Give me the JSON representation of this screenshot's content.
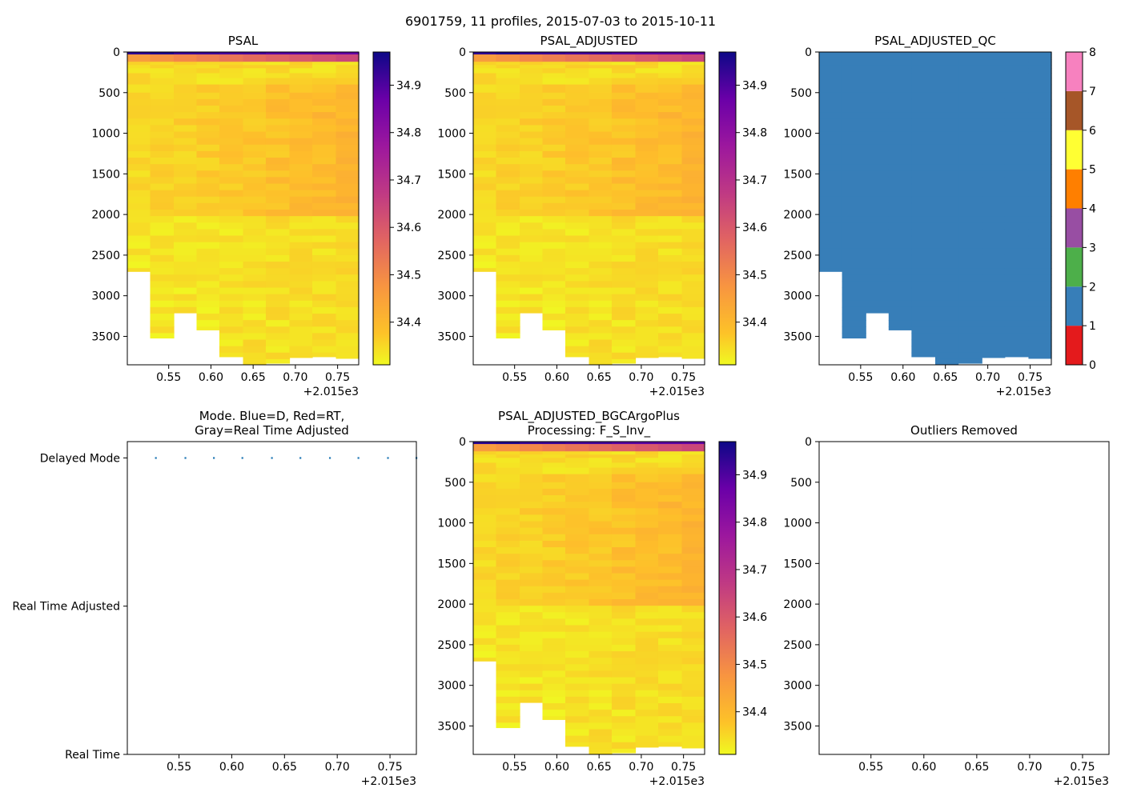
{
  "figure": {
    "title": "6901759, 11 profiles, 2015-07-03 to 2015-10-11"
  },
  "chart_data": [
    {
      "id": "psal",
      "type": "heatmap",
      "title": "PSAL",
      "x_ticks": [
        0.55,
        0.6,
        0.65,
        0.7,
        0.75
      ],
      "x_tick_labels": [
        "0.55",
        "0.60",
        "0.65",
        "0.70",
        "0.75"
      ],
      "x_offset_label": "+2.015e3",
      "xlim": [
        0.501,
        0.775
      ],
      "ylim": [
        3850,
        0
      ],
      "y_ticks": [
        0,
        500,
        1000,
        1500,
        2000,
        2500,
        3000,
        3500
      ],
      "y_tick_labels": [
        "0",
        "500",
        "1000",
        "1500",
        "2000",
        "2500",
        "3000",
        "3500"
      ],
      "profile_x": [
        0.501,
        0.528,
        0.556,
        0.583,
        0.61,
        0.638,
        0.665,
        0.693,
        0.72,
        0.748,
        0.775
      ],
      "max_depth": [
        2700,
        3520,
        3210,
        3420,
        3750,
        3840,
        3830,
        3760,
        3750,
        3770
      ],
      "colorbar": {
        "colormap": "plasma",
        "range": [
          34.31,
          34.97
        ],
        "ticks": [
          34.4,
          34.5,
          34.6,
          34.7,
          34.8,
          34.9
        ],
        "tick_labels": [
          "34.4",
          "34.5",
          "34.6",
          "34.7",
          "34.8",
          "34.9"
        ]
      }
    },
    {
      "id": "psal_adjusted",
      "type": "heatmap",
      "title": "PSAL_ADJUSTED",
      "x_ticks": [
        0.55,
        0.6,
        0.65,
        0.7,
        0.75
      ],
      "x_tick_labels": [
        "0.55",
        "0.60",
        "0.65",
        "0.70",
        "0.75"
      ],
      "x_offset_label": "+2.015e3",
      "xlim": [
        0.501,
        0.775
      ],
      "ylim": [
        3850,
        0
      ],
      "y_ticks": [
        0,
        500,
        1000,
        1500,
        2000,
        2500,
        3000,
        3500
      ],
      "y_tick_labels": [
        "0",
        "500",
        "1000",
        "1500",
        "2000",
        "2500",
        "3000",
        "3500"
      ],
      "profile_x": [
        0.501,
        0.528,
        0.556,
        0.583,
        0.61,
        0.638,
        0.665,
        0.693,
        0.72,
        0.748,
        0.775
      ],
      "max_depth": [
        2700,
        3520,
        3210,
        3420,
        3750,
        3840,
        3830,
        3760,
        3750,
        3770
      ],
      "colorbar": {
        "colormap": "plasma",
        "range": [
          34.31,
          34.97
        ],
        "ticks": [
          34.4,
          34.5,
          34.6,
          34.7,
          34.8,
          34.9
        ],
        "tick_labels": [
          "34.4",
          "34.5",
          "34.6",
          "34.7",
          "34.8",
          "34.9"
        ]
      }
    },
    {
      "id": "psal_adjusted_qc",
      "type": "heatmap",
      "title": "PSAL_ADJUSTED_QC",
      "x_ticks": [
        0.55,
        0.6,
        0.65,
        0.7,
        0.75
      ],
      "x_tick_labels": [
        "0.55",
        "0.60",
        "0.65",
        "0.70",
        "0.75"
      ],
      "x_offset_label": "+2.015e3",
      "xlim": [
        0.501,
        0.775
      ],
      "ylim": [
        3850,
        0
      ],
      "y_ticks": [
        0,
        500,
        1000,
        1500,
        2000,
        2500,
        3000,
        3500
      ],
      "y_tick_labels": [
        "0",
        "500",
        "1000",
        "1500",
        "2000",
        "2500",
        "3000",
        "3500"
      ],
      "profile_x": [
        0.501,
        0.528,
        0.556,
        0.583,
        0.61,
        0.638,
        0.665,
        0.693,
        0.72,
        0.748,
        0.775
      ],
      "max_depth": [
        2700,
        3520,
        3210,
        3420,
        3750,
        3840,
        3830,
        3760,
        3750,
        3770
      ],
      "qc_value": 1,
      "colorbar": {
        "colormap": "qc-categorical",
        "range": [
          0,
          8
        ],
        "ticks": [
          0,
          1,
          2,
          3,
          4,
          5,
          6,
          7,
          8
        ],
        "tick_labels": [
          "0",
          "1",
          "2",
          "3",
          "4",
          "5",
          "6",
          "7",
          "8"
        ],
        "category_colors": [
          "#e41a1c",
          "#377eb8",
          "#4daf4a",
          "#984ea3",
          "#ff7f00",
          "#ffff33",
          "#a65628",
          "#f781bf",
          "#999999"
        ]
      }
    },
    {
      "id": "mode",
      "type": "scatter",
      "title": "Mode. Blue=D, Red=RT,\nGray=Real Time Adjusted",
      "title_lines": [
        "Mode. Blue=D, Red=RT,",
        "Gray=Real Time Adjusted"
      ],
      "x_ticks": [
        0.55,
        0.6,
        0.65,
        0.7,
        0.75
      ],
      "x_tick_labels": [
        "0.55",
        "0.60",
        "0.65",
        "0.70",
        "0.75"
      ],
      "x_offset_label": "+2.015e3",
      "xlim": [
        0.501,
        0.775
      ],
      "y_categories": [
        "Real Time",
        "Real Time Adjusted",
        "Delayed Mode"
      ],
      "ylim": [
        0,
        2.11
      ],
      "series": [
        {
          "name": "Delayed Mode",
          "color": "#1f77b4",
          "x": [
            0.528,
            0.556,
            0.583,
            0.61,
            0.638,
            0.665,
            0.693,
            0.72,
            0.748,
            0.775
          ],
          "y": [
            2,
            2,
            2,
            2,
            2,
            2,
            2,
            2,
            2,
            2
          ]
        }
      ]
    },
    {
      "id": "psal_bgc",
      "type": "heatmap",
      "title": "PSAL_ADJUSTED_BGCArgoPlus\nProcessing: F_S_Inv_",
      "title_lines": [
        "PSAL_ADJUSTED_BGCArgoPlus",
        "Processing: F_S_Inv_"
      ],
      "x_ticks": [
        0.55,
        0.6,
        0.65,
        0.7,
        0.75
      ],
      "x_tick_labels": [
        "0.55",
        "0.60",
        "0.65",
        "0.70",
        "0.75"
      ],
      "x_offset_label": "+2.015e3",
      "xlim": [
        0.501,
        0.775
      ],
      "ylim": [
        3850,
        0
      ],
      "y_ticks": [
        0,
        500,
        1000,
        1500,
        2000,
        2500,
        3000,
        3500
      ],
      "y_tick_labels": [
        "0",
        "500",
        "1000",
        "1500",
        "2000",
        "2500",
        "3000",
        "3500"
      ],
      "profile_x": [
        0.501,
        0.528,
        0.556,
        0.583,
        0.61,
        0.638,
        0.665,
        0.693,
        0.72,
        0.748,
        0.775
      ],
      "max_depth": [
        2700,
        3520,
        3210,
        3420,
        3750,
        3840,
        3830,
        3760,
        3750,
        3770
      ],
      "colorbar": {
        "colormap": "plasma",
        "range": [
          34.31,
          34.97
        ],
        "ticks": [
          34.4,
          34.5,
          34.6,
          34.7,
          34.8,
          34.9
        ],
        "tick_labels": [
          "34.4",
          "34.5",
          "34.6",
          "34.7",
          "34.8",
          "34.9"
        ]
      }
    },
    {
      "id": "outliers",
      "type": "scatter",
      "title": "Outliers Removed",
      "x_ticks": [
        0.55,
        0.6,
        0.65,
        0.7,
        0.75
      ],
      "x_tick_labels": [
        "0.55",
        "0.60",
        "0.65",
        "0.70",
        "0.75"
      ],
      "x_offset_label": "+2.015e3",
      "xlim": [
        0.501,
        0.775
      ],
      "ylim": [
        3850,
        0
      ],
      "y_ticks": [
        0,
        500,
        1000,
        1500,
        2000,
        2500,
        3000,
        3500
      ],
      "y_tick_labels": [
        "0",
        "500",
        "1000",
        "1500",
        "2000",
        "2500",
        "3000",
        "3500"
      ],
      "series": []
    }
  ]
}
